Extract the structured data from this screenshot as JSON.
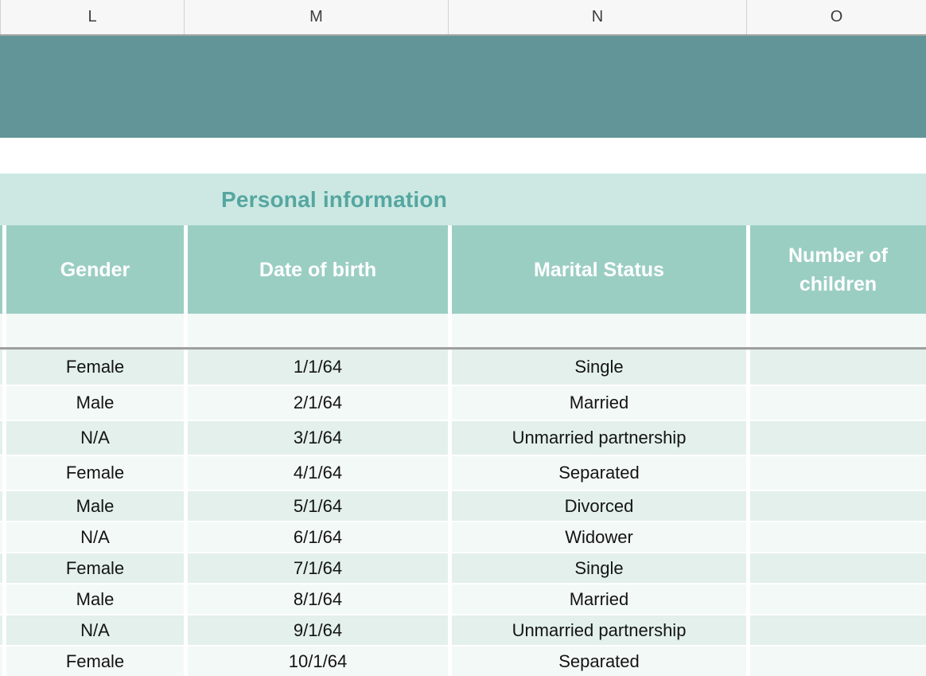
{
  "sheet": {
    "columns": [
      "L",
      "M",
      "N",
      "O"
    ]
  },
  "table": {
    "title": "Personal information",
    "headers": [
      "Gender",
      "Date of birth",
      "Marital Status",
      "Number of children"
    ],
    "rows": [
      [
        "Female",
        "1/1/64",
        "Single",
        ""
      ],
      [
        "Male",
        "2/1/64",
        "Married",
        ""
      ],
      [
        "N/A",
        "3/1/64",
        "Unmarried partnership",
        ""
      ],
      [
        "Female",
        "4/1/64",
        "Separated",
        ""
      ],
      [
        "Male",
        "5/1/64",
        "Divorced",
        ""
      ],
      [
        "N/A",
        "6/1/64",
        "Widower",
        ""
      ],
      [
        "Female",
        "7/1/64",
        "Single",
        ""
      ],
      [
        "Male",
        "8/1/64",
        "Married",
        ""
      ],
      [
        "N/A",
        "9/1/64",
        "Unmarried partnership",
        ""
      ],
      [
        "Female",
        "10/1/64",
        "Separated",
        ""
      ]
    ]
  },
  "colors": {
    "banner_teal": "#629597",
    "table_header_teal": "#9bcec3",
    "title_background": "#cde8e2",
    "title_text": "#55a6a1",
    "row_dark": "#e3f0ec",
    "row_light": "#f3f9f6",
    "divider_gray": "#9e9e9e",
    "column_header_background": "#f7f7f7"
  }
}
